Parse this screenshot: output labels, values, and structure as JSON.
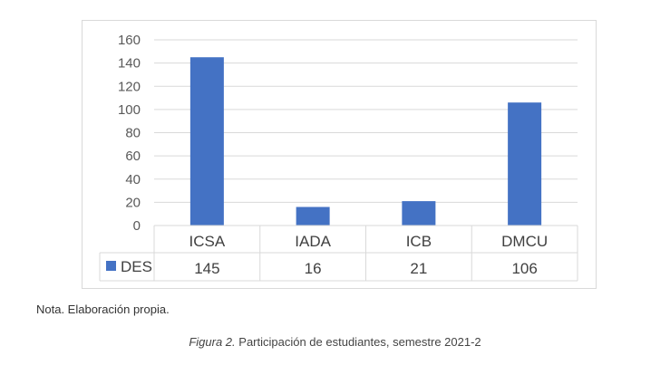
{
  "chart_data": {
    "type": "bar",
    "categories": [
      "ICSA",
      "IADA",
      "ICB",
      "DMCU"
    ],
    "series": [
      {
        "name": "DES",
        "values": [
          145,
          16,
          21,
          106
        ],
        "color": "#4472c4"
      }
    ],
    "ylim": [
      0,
      160
    ],
    "yticks": [
      0,
      20,
      40,
      60,
      80,
      100,
      120,
      140,
      160
    ],
    "grid": true,
    "legend": "data-table-left"
  },
  "note": "Nota. Elaboración propia.",
  "caption": {
    "label": "Figura 2.",
    "text": " Participación de estudiantes, semestre 2021-2"
  }
}
